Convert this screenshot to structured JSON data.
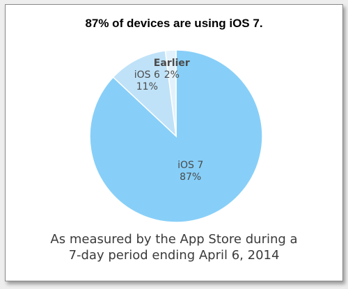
{
  "title": "87% of devices are using iOS 7.",
  "caption": {
    "line1": "As measured by the App Store during a",
    "line2": "7-day period ending April 6, 2014"
  },
  "colors": {
    "ios7": "#87cff8",
    "ios6": "#bfe2f8",
    "earlier": "#e2f2fc",
    "label_text": "#4a4a4a",
    "caption_text": "#3a3a3a"
  },
  "chart_data": {
    "type": "pie",
    "title": "87% of devices are using iOS 7.",
    "slices": [
      {
        "label": "iOS 7",
        "value": 87,
        "value_label": "87%",
        "color": "#87cff8"
      },
      {
        "label": "iOS 6",
        "value": 11,
        "value_label": "11%",
        "color": "#bfe2f8"
      },
      {
        "label": "Earlier",
        "value": 2,
        "value_label": "2%",
        "color": "#e2f2fc"
      }
    ]
  }
}
